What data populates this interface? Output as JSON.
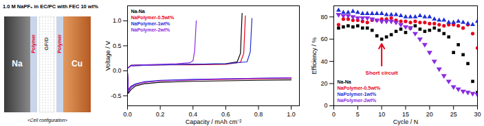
{
  "diagram": {
    "title": "1.0 M NaPF₆ in EC/PC with FEC 10 wt%",
    "layers": [
      {
        "label": "Na"
      },
      {
        "label": "Polymer"
      },
      {
        "label": "GF/D"
      },
      {
        "label": "Polymer"
      },
      {
        "label": "Cu"
      }
    ],
    "caption": "<Cell configuration>"
  },
  "chart_data": [
    {
      "type": "line",
      "xlabel": "Capacity / mAh cm⁻²",
      "ylabel": "Voltage / V",
      "xlim": [
        0,
        1.05
      ],
      "ylim": [
        -0.7,
        1.3
      ],
      "xticks": [
        {
          "value": 0,
          "label": "0.0"
        },
        0.2,
        0.4,
        0.6,
        0.8,
        {
          "value": 1,
          "label": "1.0"
        }
      ],
      "yticks": [
        -0.5,
        {
          "value": 0,
          "label": "0.0"
        },
        0.5,
        {
          "value": 1,
          "label": "1.0"
        }
      ],
      "legend": "top-left",
      "series": [
        {
          "name": "Na-Na",
          "color": "#000000",
          "x": [
            0,
            0.005,
            0.02,
            0.05,
            0.1,
            0.2,
            0.4,
            0.6,
            0.8,
            1.0,
            1.0,
            0,
            0.02,
            0.1,
            0.2,
            0.4,
            0.6,
            0.67,
            0.69,
            0.7
          ],
          "values": [
            -0.05,
            -0.45,
            -0.38,
            -0.3,
            -0.26,
            -0.23,
            -0.21,
            -0.2,
            -0.19,
            -0.18,
            null,
            0.05,
            0.11,
            0.12,
            0.12,
            0.13,
            0.14,
            0.18,
            0.35,
            1.15
          ]
        },
        {
          "name": "NaPolymer-0.5wt%",
          "color": "#e8001c",
          "x": [
            0,
            0.005,
            0.02,
            0.05,
            0.1,
            0.2,
            0.4,
            0.6,
            0.8,
            1.0,
            1.0,
            0,
            0.02,
            0.1,
            0.2,
            0.4,
            0.6,
            0.69,
            0.71,
            0.72
          ],
          "values": [
            -0.05,
            -0.4,
            -0.33,
            -0.27,
            -0.23,
            -0.2,
            -0.18,
            -0.17,
            -0.16,
            -0.15,
            null,
            0.05,
            0.1,
            0.11,
            0.12,
            0.12,
            0.13,
            0.17,
            0.35,
            1.1
          ]
        },
        {
          "name": "NaPolymer-1wt%",
          "color": "#1f2fd6",
          "x": [
            0,
            0.005,
            0.02,
            0.05,
            0.1,
            0.2,
            0.4,
            0.6,
            0.8,
            1.0,
            1.0,
            0,
            0.02,
            0.1,
            0.2,
            0.4,
            0.6,
            0.73,
            0.75,
            0.76
          ],
          "values": [
            -0.05,
            -0.38,
            -0.31,
            -0.26,
            -0.22,
            -0.19,
            -0.17,
            -0.16,
            -0.15,
            -0.14,
            null,
            0.05,
            0.1,
            0.11,
            0.12,
            0.13,
            0.14,
            0.18,
            0.38,
            1.05
          ]
        },
        {
          "name": "NaPolymer-2wt%",
          "color": "#8a2be2",
          "x": [
            0,
            0.005,
            0.02,
            0.05,
            0.1,
            0.2,
            0.4,
            0.6,
            0.8,
            1.0,
            1.0,
            0,
            0.02,
            0.1,
            0.2,
            0.3,
            0.38,
            0.4,
            0.41,
            0.42
          ],
          "values": [
            -0.05,
            -0.42,
            -0.34,
            -0.27,
            -0.23,
            -0.2,
            -0.18,
            -0.16,
            -0.15,
            -0.14,
            null,
            0.05,
            0.11,
            0.12,
            0.13,
            0.14,
            0.16,
            0.2,
            0.4,
            1.0
          ]
        }
      ]
    },
    {
      "type": "scatter",
      "xlabel": "Cycle / N",
      "ylabel": "Efficiency / %",
      "xlim": [
        0,
        30
      ],
      "ylim": [
        0,
        90
      ],
      "xticks": [
        0,
        5,
        10,
        15,
        20,
        25,
        30
      ],
      "yticks": [
        0,
        20,
        40,
        60,
        80
      ],
      "legend": "bottom-left",
      "x": [
        1,
        2,
        3,
        4,
        5,
        6,
        7,
        8,
        9,
        10,
        11,
        12,
        13,
        14,
        15,
        16,
        17,
        18,
        19,
        20,
        21,
        22,
        23,
        24,
        25,
        26,
        27,
        28,
        29,
        30
      ],
      "series": [
        {
          "name": "Na-Na",
          "color": "#000000",
          "marker": "square",
          "values": [
            70,
            71,
            72,
            71,
            72,
            70,
            70,
            68,
            63,
            60,
            62,
            64,
            67,
            69,
            66,
            70,
            72,
            69,
            67,
            68,
            70,
            68,
            65,
            62,
            48,
            55,
            46,
            38,
            22,
            12
          ]
        },
        {
          "name": "NaPolymer-0.5wt%",
          "color": "#e8001c",
          "marker": "circle",
          "values": [
            73,
            78,
            78,
            77,
            77,
            76,
            75,
            77,
            77,
            78,
            78,
            79,
            77,
            76,
            76,
            75,
            76,
            75,
            75,
            74,
            74,
            73,
            72,
            73,
            73,
            72,
            70,
            73,
            65,
            52
          ]
        },
        {
          "name": "NaPolymer-1wt%",
          "color": "#1f2fd6",
          "marker": "triangle",
          "values": [
            86,
            84,
            84,
            85,
            84,
            83,
            83,
            83,
            83,
            83,
            82,
            82,
            82,
            81,
            80,
            80,
            80,
            81,
            80,
            80,
            78,
            77,
            77,
            75,
            75,
            76,
            75,
            74,
            73,
            76
          ]
        },
        {
          "name": "NaPolymer-2wt%",
          "color": "#8a2be2",
          "marker": "triangle-down",
          "values": [
            82,
            81,
            81,
            80,
            79,
            79,
            79,
            78,
            77,
            76,
            76,
            76,
            75,
            73,
            71,
            70,
            65,
            60,
            55,
            48,
            40,
            33,
            27,
            22,
            17,
            15,
            13,
            12,
            11,
            10
          ]
        }
      ],
      "annotation": {
        "text": "Short circuit",
        "x": 10,
        "color": "#e8001c"
      }
    }
  ]
}
